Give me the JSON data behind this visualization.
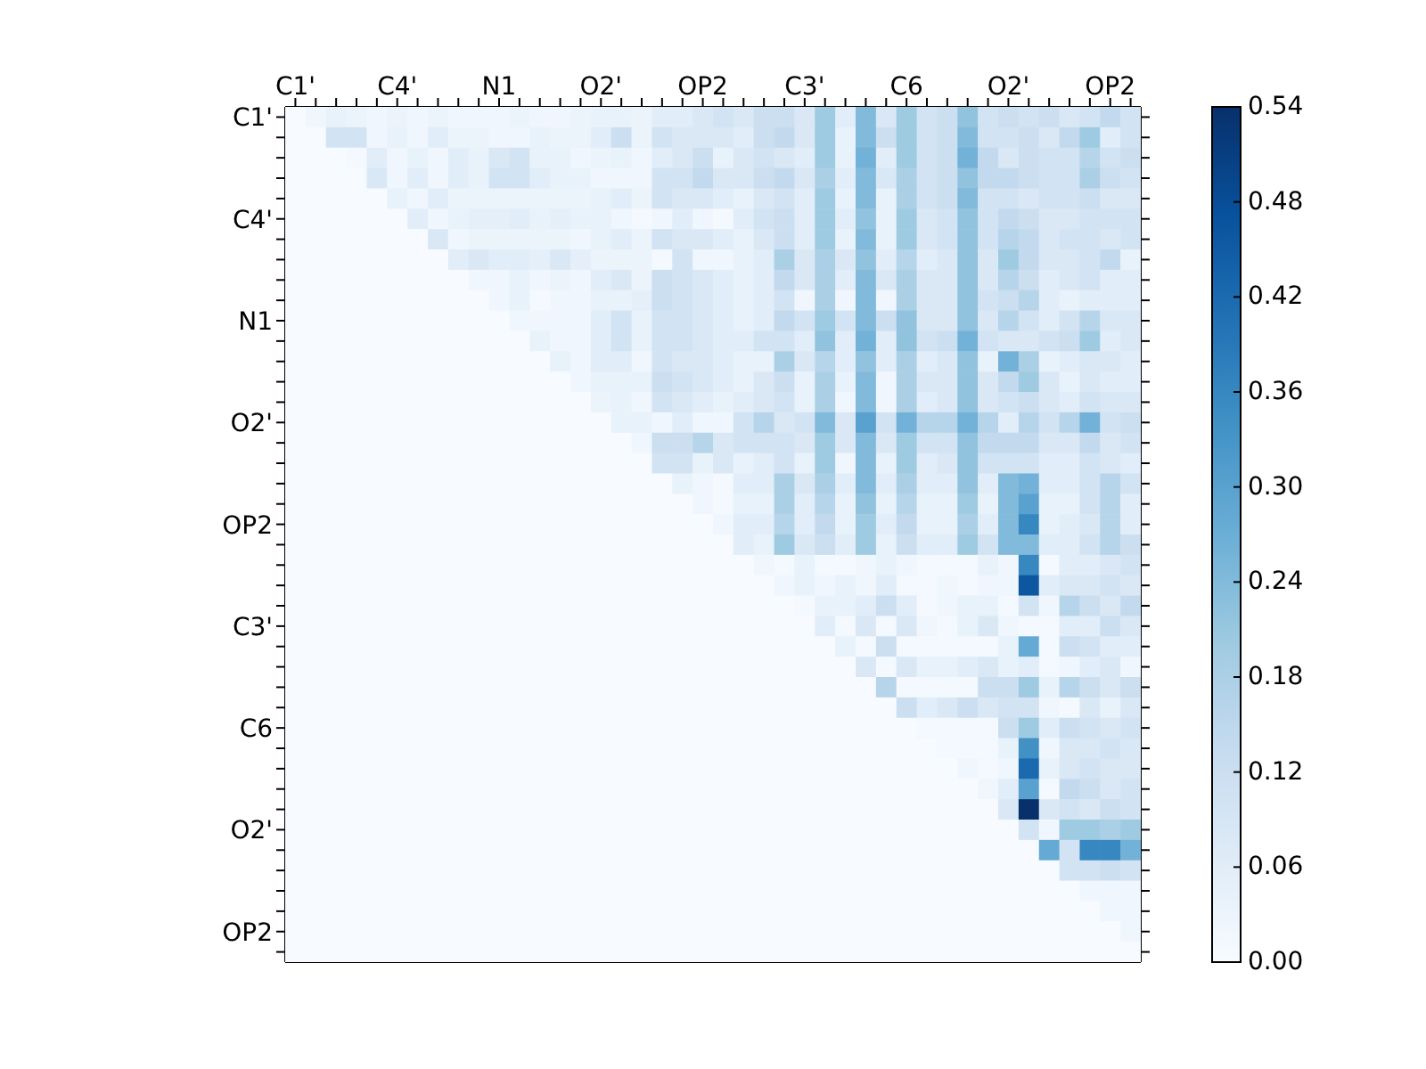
{
  "chart_data": {
    "type": "heatmap",
    "categories": [
      "C1'",
      null,
      null,
      null,
      null,
      "C4'",
      null,
      null,
      null,
      null,
      "N1",
      null,
      null,
      null,
      null,
      "O2'",
      null,
      null,
      null,
      null,
      "OP2",
      null,
      null,
      null,
      null,
      "C3'",
      null,
      null,
      null,
      null,
      "C6",
      null,
      null,
      null,
      null,
      "O2'",
      null,
      null,
      null,
      null,
      "OP2",
      null
    ],
    "y_categories": [
      "C1'",
      null,
      null,
      null,
      null,
      "C4'",
      null,
      null,
      null,
      null,
      "N1",
      null,
      null,
      null,
      null,
      "O2'",
      null,
      null,
      null,
      null,
      "OP2",
      null,
      null,
      null,
      null,
      "C3'",
      null,
      null,
      null,
      null,
      "C6",
      null,
      null,
      null,
      null,
      "O2'",
      null,
      null,
      null,
      null,
      "OP2",
      null
    ],
    "clim": [
      0,
      0.54
    ],
    "cticks": [
      {
        "value": 0,
        "label": "0.00"
      },
      0.06,
      0.12,
      0.18,
      0.24,
      {
        "value": 0.3,
        "label": "0.30"
      },
      0.36,
      0.42,
      0.48,
      0.54
    ],
    "cells": [
      [
        0,
        0.02,
        0.04,
        0.03,
        0.02,
        0.03,
        0.02,
        0.03,
        0.02,
        0.02,
        0.02,
        0.03,
        0.02,
        0.02,
        0.03,
        0.04,
        0.04,
        0.03,
        0.06,
        0.06,
        0.08,
        0.1,
        0.08,
        0.12,
        0.12,
        0.08,
        0.2,
        0.06,
        0.24,
        0.08,
        0.2,
        0.1,
        0.12,
        0.22,
        0.1,
        0.12,
        0.1,
        0.12,
        0.08,
        0.1,
        0.14,
        0.1
      ],
      [
        0,
        0,
        0.1,
        0.1,
        0.02,
        0.04,
        0.02,
        0.06,
        0.03,
        0.03,
        0.02,
        0.02,
        0.04,
        0.03,
        0.03,
        0.06,
        0.12,
        0.03,
        0.1,
        0.08,
        0.08,
        0.08,
        0.06,
        0.12,
        0.14,
        0.08,
        0.2,
        0.04,
        0.24,
        0.12,
        0.2,
        0.1,
        0.12,
        0.24,
        0.1,
        0.1,
        0.12,
        0.08,
        0.14,
        0.2,
        0.06,
        0.1
      ],
      [
        0,
        0,
        0,
        0.01,
        0.06,
        0.02,
        0.04,
        0.02,
        0.06,
        0.04,
        0.08,
        0.1,
        0.04,
        0.04,
        0.02,
        0.03,
        0.04,
        0.02,
        0.06,
        0.08,
        0.12,
        0.04,
        0.08,
        0.1,
        0.08,
        0.06,
        0.2,
        0.04,
        0.26,
        0.06,
        0.2,
        0.1,
        0.12,
        0.26,
        0.14,
        0.08,
        0.12,
        0.1,
        0.1,
        0.16,
        0.1,
        0.12
      ],
      [
        0,
        0,
        0,
        0,
        0.08,
        0.02,
        0.06,
        0.02,
        0.06,
        0.04,
        0.1,
        0.1,
        0.06,
        0.04,
        0.04,
        0.02,
        0.02,
        0.02,
        0.1,
        0.1,
        0.14,
        0.08,
        0.08,
        0.12,
        0.14,
        0.08,
        0.18,
        0.06,
        0.24,
        0.08,
        0.18,
        0.1,
        0.12,
        0.22,
        0.14,
        0.14,
        0.12,
        0.1,
        0.1,
        0.18,
        0.12,
        0.1
      ],
      [
        0,
        0,
        0,
        0,
        0,
        0.04,
        0.02,
        0.06,
        0.03,
        0.03,
        0.03,
        0.03,
        0.03,
        0.03,
        0.03,
        0.04,
        0.06,
        0.03,
        0.1,
        0.08,
        0.08,
        0.06,
        0.04,
        0.08,
        0.1,
        0.06,
        0.2,
        0.04,
        0.24,
        0.04,
        0.18,
        0.1,
        0.12,
        0.24,
        0.1,
        0.1,
        0.08,
        0.1,
        0.1,
        0.12,
        0.08,
        0.08
      ],
      [
        0,
        0,
        0,
        0,
        0,
        0,
        0.06,
        0.02,
        0.04,
        0.05,
        0.05,
        0.06,
        0.04,
        0.05,
        0.04,
        0.04,
        0.02,
        0.01,
        0.02,
        0.06,
        0.02,
        0.01,
        0.06,
        0.1,
        0.12,
        0.06,
        0.2,
        0.06,
        0.22,
        0.04,
        0.2,
        0.08,
        0.1,
        0.22,
        0.1,
        0.14,
        0.12,
        0.08,
        0.08,
        0.1,
        0.1,
        0.1
      ],
      [
        0,
        0,
        0,
        0,
        0,
        0,
        0,
        0.08,
        0.02,
        0.03,
        0.03,
        0.03,
        0.03,
        0.03,
        0.02,
        0.04,
        0.06,
        0.03,
        0.1,
        0.08,
        0.08,
        0.06,
        0.04,
        0.08,
        0.12,
        0.06,
        0.2,
        0.04,
        0.24,
        0.04,
        0.2,
        0.08,
        0.1,
        0.22,
        0.1,
        0.16,
        0.14,
        0.08,
        0.1,
        0.1,
        0.08,
        0.1
      ],
      [
        0,
        0,
        0,
        0,
        0,
        0,
        0,
        0,
        0.06,
        0.08,
        0.06,
        0.06,
        0.05,
        0.08,
        0.05,
        0.03,
        0.03,
        0.03,
        0.01,
        0.1,
        0.02,
        0.02,
        0.04,
        0.06,
        0.18,
        0.08,
        0.18,
        0.08,
        0.22,
        0.06,
        0.16,
        0.06,
        0.08,
        0.22,
        0.08,
        0.2,
        0.14,
        0.08,
        0.08,
        0.1,
        0.14,
        0.04
      ],
      [
        0,
        0,
        0,
        0,
        0,
        0,
        0,
        0,
        0,
        0.02,
        0.02,
        0.04,
        0.02,
        0.03,
        0.02,
        0.06,
        0.08,
        0.03,
        0.12,
        0.1,
        0.08,
        0.06,
        0.04,
        0.06,
        0.14,
        0.08,
        0.18,
        0.06,
        0.24,
        0.08,
        0.18,
        0.08,
        0.08,
        0.22,
        0.08,
        0.16,
        0.12,
        0.06,
        0.08,
        0.1,
        0.06,
        0.06
      ],
      [
        0,
        0,
        0,
        0,
        0,
        0,
        0,
        0,
        0,
        0,
        0.02,
        0.04,
        0.01,
        0.02,
        0.02,
        0.04,
        0.04,
        0.05,
        0.12,
        0.1,
        0.08,
        0.06,
        0.04,
        0.06,
        0.1,
        0.02,
        0.18,
        0.02,
        0.24,
        0.02,
        0.18,
        0.08,
        0.08,
        0.22,
        0.1,
        0.12,
        0.16,
        0.06,
        0.04,
        0.06,
        0.06,
        0.06
      ],
      [
        0,
        0,
        0,
        0,
        0,
        0,
        0,
        0,
        0,
        0,
        0,
        0.02,
        0.02,
        0.02,
        0.02,
        0.06,
        0.1,
        0.04,
        0.1,
        0.1,
        0.08,
        0.06,
        0.04,
        0.06,
        0.14,
        0.1,
        0.2,
        0.1,
        0.24,
        0.12,
        0.22,
        0.08,
        0.08,
        0.22,
        0.08,
        0.16,
        0.1,
        0.06,
        0.1,
        0.16,
        0.08,
        0.08
      ],
      [
        0,
        0,
        0,
        0,
        0,
        0,
        0,
        0,
        0,
        0,
        0,
        0,
        0.04,
        0.02,
        0.02,
        0.06,
        0.1,
        0.04,
        0.1,
        0.1,
        0.08,
        0.06,
        0.06,
        0.1,
        0.1,
        0.06,
        0.22,
        0.06,
        0.26,
        0.06,
        0.22,
        0.1,
        0.12,
        0.26,
        0.1,
        0.08,
        0.08,
        0.1,
        0.12,
        0.2,
        0.06,
        0.08
      ],
      [
        0,
        0,
        0,
        0,
        0,
        0,
        0,
        0,
        0,
        0,
        0,
        0,
        0,
        0.04,
        0.02,
        0.06,
        0.06,
        0.02,
        0.1,
        0.08,
        0.08,
        0.06,
        0.04,
        0.04,
        0.18,
        0.08,
        0.16,
        0.06,
        0.22,
        0.06,
        0.18,
        0.06,
        0.08,
        0.22,
        0.04,
        0.26,
        0.18,
        0.04,
        0.06,
        0.08,
        0.08,
        0.06
      ],
      [
        0,
        0,
        0,
        0,
        0,
        0,
        0,
        0,
        0,
        0,
        0,
        0,
        0,
        0,
        0.02,
        0.04,
        0.04,
        0.04,
        0.12,
        0.1,
        0.08,
        0.06,
        0.04,
        0.08,
        0.12,
        0.04,
        0.18,
        0.04,
        0.24,
        0.02,
        0.18,
        0.08,
        0.08,
        0.22,
        0.08,
        0.14,
        0.2,
        0.08,
        0.04,
        0.08,
        0.06,
        0.06
      ],
      [
        0,
        0,
        0,
        0,
        0,
        0,
        0,
        0,
        0,
        0,
        0,
        0,
        0,
        0,
        0,
        0.03,
        0.04,
        0.02,
        0.1,
        0.08,
        0.06,
        0.04,
        0.06,
        0.08,
        0.1,
        0.04,
        0.18,
        0.02,
        0.24,
        0.02,
        0.18,
        0.06,
        0.08,
        0.22,
        0.08,
        0.1,
        0.12,
        0.08,
        0.06,
        0.1,
        0.08,
        0.08
      ],
      [
        0,
        0,
        0,
        0,
        0,
        0,
        0,
        0,
        0,
        0,
        0,
        0,
        0,
        0,
        0,
        0,
        0.04,
        0.04,
        0.02,
        0.06,
        0.02,
        0.02,
        0.1,
        0.16,
        0.08,
        0.1,
        0.24,
        0.08,
        0.3,
        0.1,
        0.26,
        0.16,
        0.16,
        0.26,
        0.16,
        0.06,
        0.16,
        0.1,
        0.16,
        0.26,
        0.1,
        0.12
      ],
      [
        0,
        0,
        0,
        0,
        0,
        0,
        0,
        0,
        0,
        0,
        0,
        0,
        0,
        0,
        0,
        0,
        0,
        0.02,
        0.12,
        0.12,
        0.16,
        0.08,
        0.1,
        0.1,
        0.1,
        0.08,
        0.2,
        0.08,
        0.24,
        0.08,
        0.2,
        0.1,
        0.1,
        0.22,
        0.14,
        0.14,
        0.14,
        0.08,
        0.08,
        0.14,
        0.08,
        0.1
      ],
      [
        0,
        0,
        0,
        0,
        0,
        0,
        0,
        0,
        0,
        0,
        0,
        0,
        0,
        0,
        0,
        0,
        0,
        0,
        0.1,
        0.1,
        0.04,
        0.08,
        0.04,
        0.06,
        0.1,
        0.04,
        0.2,
        0.02,
        0.24,
        0.04,
        0.2,
        0.06,
        0.08,
        0.22,
        0.1,
        0.1,
        0.1,
        0.06,
        0.06,
        0.1,
        0.08,
        0.06
      ],
      [
        0,
        0,
        0,
        0,
        0,
        0,
        0,
        0,
        0,
        0,
        0,
        0,
        0,
        0,
        0,
        0,
        0,
        0,
        0,
        0.04,
        0.02,
        0.01,
        0.06,
        0.06,
        0.18,
        0.08,
        0.18,
        0.06,
        0.24,
        0.06,
        0.18,
        0.06,
        0.06,
        0.22,
        0.06,
        0.24,
        0.26,
        0.06,
        0.06,
        0.1,
        0.16,
        0.1
      ],
      [
        0,
        0,
        0,
        0,
        0,
        0,
        0,
        0,
        0,
        0,
        0,
        0,
        0,
        0,
        0,
        0,
        0,
        0,
        0,
        0,
        0.02,
        0.01,
        0.04,
        0.04,
        0.18,
        0.06,
        0.16,
        0.04,
        0.22,
        0.04,
        0.16,
        0.04,
        0.04,
        0.2,
        0.04,
        0.24,
        0.3,
        0.04,
        0.04,
        0.1,
        0.16,
        0.06
      ],
      [
        0,
        0,
        0,
        0,
        0,
        0,
        0,
        0,
        0,
        0,
        0,
        0,
        0,
        0,
        0,
        0,
        0,
        0,
        0,
        0,
        0,
        0.02,
        0.06,
        0.06,
        0.16,
        0.06,
        0.14,
        0.04,
        0.2,
        0.06,
        0.14,
        0.04,
        0.04,
        0.18,
        0.06,
        0.24,
        0.36,
        0.04,
        0.06,
        0.08,
        0.16,
        0.06
      ],
      [
        0,
        0,
        0,
        0,
        0,
        0,
        0,
        0,
        0,
        0,
        0,
        0,
        0,
        0,
        0,
        0,
        0,
        0,
        0,
        0,
        0,
        0,
        0.06,
        0.04,
        0.2,
        0.08,
        0.12,
        0.06,
        0.2,
        0.04,
        0.12,
        0.06,
        0.06,
        0.2,
        0.1,
        0.24,
        0.24,
        0.06,
        0.06,
        0.1,
        0.16,
        0.12
      ],
      [
        0,
        0,
        0,
        0,
        0,
        0,
        0,
        0,
        0,
        0,
        0,
        0,
        0,
        0,
        0,
        0,
        0,
        0,
        0,
        0,
        0,
        0,
        0,
        0.02,
        0.01,
        0.04,
        0.01,
        0.01,
        0.02,
        0.04,
        0.02,
        0.01,
        0.01,
        0.01,
        0.04,
        0.02,
        0.36,
        0.01,
        0.06,
        0.06,
        0.08,
        0.1
      ],
      [
        0,
        0,
        0,
        0,
        0,
        0,
        0,
        0,
        0,
        0,
        0,
        0,
        0,
        0,
        0,
        0,
        0,
        0,
        0,
        0,
        0,
        0,
        0,
        0,
        0.02,
        0.04,
        0.02,
        0.04,
        0.02,
        0.06,
        0.01,
        0.01,
        0.02,
        0.01,
        0.02,
        0.02,
        0.46,
        0.06,
        0.08,
        0.08,
        0.1,
        0.08
      ],
      [
        0,
        0,
        0,
        0,
        0,
        0,
        0,
        0,
        0,
        0,
        0,
        0,
        0,
        0,
        0,
        0,
        0,
        0,
        0,
        0,
        0,
        0,
        0,
        0,
        0,
        0.01,
        0.04,
        0.04,
        0.06,
        0.12,
        0.06,
        0.01,
        0.02,
        0.04,
        0.04,
        0.01,
        0.1,
        0.02,
        0.16,
        0.12,
        0.08,
        0.14
      ],
      [
        0,
        0,
        0,
        0,
        0,
        0,
        0,
        0,
        0,
        0,
        0,
        0,
        0,
        0,
        0,
        0,
        0,
        0,
        0,
        0,
        0,
        0,
        0,
        0,
        0,
        0,
        0.06,
        0.01,
        0.08,
        0.01,
        0.08,
        0.02,
        0.01,
        0.04,
        0.08,
        0.02,
        0.01,
        0.01,
        0.06,
        0.06,
        0.12,
        0.08
      ],
      [
        0,
        0,
        0,
        0,
        0,
        0,
        0,
        0,
        0,
        0,
        0,
        0,
        0,
        0,
        0,
        0,
        0,
        0,
        0,
        0,
        0,
        0,
        0,
        0,
        0,
        0,
        0,
        0.04,
        0.01,
        0.12,
        0.01,
        0.01,
        0.01,
        0.01,
        0.01,
        0.04,
        0.28,
        0.01,
        0.12,
        0.1,
        0.06,
        0.06
      ],
      [
        0,
        0,
        0,
        0,
        0,
        0,
        0,
        0,
        0,
        0,
        0,
        0,
        0,
        0,
        0,
        0,
        0,
        0,
        0,
        0,
        0,
        0,
        0,
        0,
        0,
        0,
        0,
        0,
        0.08,
        0.01,
        0.08,
        0.04,
        0.04,
        0.06,
        0.08,
        0.04,
        0.06,
        0.01,
        0.02,
        0.06,
        0.08,
        0.02
      ],
      [
        0,
        0,
        0,
        0,
        0,
        0,
        0,
        0,
        0,
        0,
        0,
        0,
        0,
        0,
        0,
        0,
        0,
        0,
        0,
        0,
        0,
        0,
        0,
        0,
        0,
        0,
        0,
        0,
        0,
        0.16,
        0.01,
        0.01,
        0.01,
        0.01,
        0.12,
        0.12,
        0.2,
        0.04,
        0.16,
        0.12,
        0.08,
        0.12
      ],
      [
        0,
        0,
        0,
        0,
        0,
        0,
        0,
        0,
        0,
        0,
        0,
        0,
        0,
        0,
        0,
        0,
        0,
        0,
        0,
        0,
        0,
        0,
        0,
        0,
        0,
        0,
        0,
        0,
        0,
        0,
        0.12,
        0.06,
        0.08,
        0.12,
        0.08,
        0.1,
        0.1,
        0.02,
        0.01,
        0.08,
        0.04,
        0.08
      ],
      [
        0,
        0,
        0,
        0,
        0,
        0,
        0,
        0,
        0,
        0,
        0,
        0,
        0,
        0,
        0,
        0,
        0,
        0,
        0,
        0,
        0,
        0,
        0,
        0,
        0,
        0,
        0,
        0,
        0,
        0,
        0,
        0.01,
        0.01,
        0.01,
        0.01,
        0.12,
        0.2,
        0.06,
        0.12,
        0.1,
        0.08,
        0.1
      ],
      [
        0,
        0,
        0,
        0,
        0,
        0,
        0,
        0,
        0,
        0,
        0,
        0,
        0,
        0,
        0,
        0,
        0,
        0,
        0,
        0,
        0,
        0,
        0,
        0,
        0,
        0,
        0,
        0,
        0,
        0,
        0,
        0,
        0.01,
        0.01,
        0.01,
        0.04,
        0.34,
        0.02,
        0.08,
        0.08,
        0.1,
        0.08
      ],
      [
        0,
        0,
        0,
        0,
        0,
        0,
        0,
        0,
        0,
        0,
        0,
        0,
        0,
        0,
        0,
        0,
        0,
        0,
        0,
        0,
        0,
        0,
        0,
        0,
        0,
        0,
        0,
        0,
        0,
        0,
        0,
        0,
        0,
        0.02,
        0.01,
        0.02,
        0.42,
        0.04,
        0.08,
        0.1,
        0.08,
        0.08
      ],
      [
        0,
        0,
        0,
        0,
        0,
        0,
        0,
        0,
        0,
        0,
        0,
        0,
        0,
        0,
        0,
        0,
        0,
        0,
        0,
        0,
        0,
        0,
        0,
        0,
        0,
        0,
        0,
        0,
        0,
        0,
        0,
        0,
        0,
        0,
        0.02,
        0.06,
        0.3,
        0.01,
        0.14,
        0.12,
        0.08,
        0.1
      ],
      [
        0,
        0,
        0,
        0,
        0,
        0,
        0,
        0,
        0,
        0,
        0,
        0,
        0,
        0,
        0,
        0,
        0,
        0,
        0,
        0,
        0,
        0,
        0,
        0,
        0,
        0,
        0,
        0,
        0,
        0,
        0,
        0,
        0,
        0,
        0,
        0.08,
        0.54,
        0.08,
        0.1,
        0.08,
        0.12,
        0.1
      ],
      [
        0,
        0,
        0,
        0,
        0,
        0,
        0,
        0,
        0,
        0,
        0,
        0,
        0,
        0,
        0,
        0,
        0,
        0,
        0,
        0,
        0,
        0,
        0,
        0,
        0,
        0,
        0,
        0,
        0,
        0,
        0,
        0,
        0,
        0,
        0,
        0,
        0.1,
        0.02,
        0.2,
        0.2,
        0.18,
        0.2
      ],
      [
        0,
        0,
        0,
        0,
        0,
        0,
        0,
        0,
        0,
        0,
        0,
        0,
        0,
        0,
        0,
        0,
        0,
        0,
        0,
        0,
        0,
        0,
        0,
        0,
        0,
        0,
        0,
        0,
        0,
        0,
        0,
        0,
        0,
        0,
        0,
        0,
        0,
        0.28,
        0.1,
        0.36,
        0.36,
        0.26
      ],
      [
        0,
        0,
        0,
        0,
        0,
        0,
        0,
        0,
        0,
        0,
        0,
        0,
        0,
        0,
        0,
        0,
        0,
        0,
        0,
        0,
        0,
        0,
        0,
        0,
        0,
        0,
        0,
        0,
        0,
        0,
        0,
        0,
        0,
        0,
        0,
        0,
        0,
        0,
        0.1,
        0.1,
        0.12,
        0.1
      ],
      [
        0,
        0,
        0,
        0,
        0,
        0,
        0,
        0,
        0,
        0,
        0,
        0,
        0,
        0,
        0,
        0,
        0,
        0,
        0,
        0,
        0,
        0,
        0,
        0,
        0,
        0,
        0,
        0,
        0,
        0,
        0,
        0,
        0,
        0,
        0,
        0,
        0,
        0,
        0,
        0.02,
        0.02,
        0.02
      ],
      [
        0,
        0,
        0,
        0,
        0,
        0,
        0,
        0,
        0,
        0,
        0,
        0,
        0,
        0,
        0,
        0,
        0,
        0,
        0,
        0,
        0,
        0,
        0,
        0,
        0,
        0,
        0,
        0,
        0,
        0,
        0,
        0,
        0,
        0,
        0,
        0,
        0,
        0,
        0,
        0,
        0.02,
        0.02
      ],
      [
        0,
        0,
        0,
        0,
        0,
        0,
        0,
        0,
        0,
        0,
        0,
        0,
        0,
        0,
        0,
        0,
        0,
        0,
        0,
        0,
        0,
        0,
        0,
        0,
        0,
        0,
        0,
        0,
        0,
        0,
        0,
        0,
        0,
        0,
        0,
        0,
        0,
        0,
        0,
        0,
        0,
        0.02
      ],
      [
        0,
        0,
        0,
        0,
        0,
        0,
        0,
        0,
        0,
        0,
        0,
        0,
        0,
        0,
        0,
        0,
        0,
        0,
        0,
        0,
        0,
        0,
        0,
        0,
        0,
        0,
        0,
        0,
        0,
        0,
        0,
        0,
        0,
        0,
        0,
        0,
        0,
        0,
        0,
        0,
        0,
        0
      ]
    ]
  }
}
